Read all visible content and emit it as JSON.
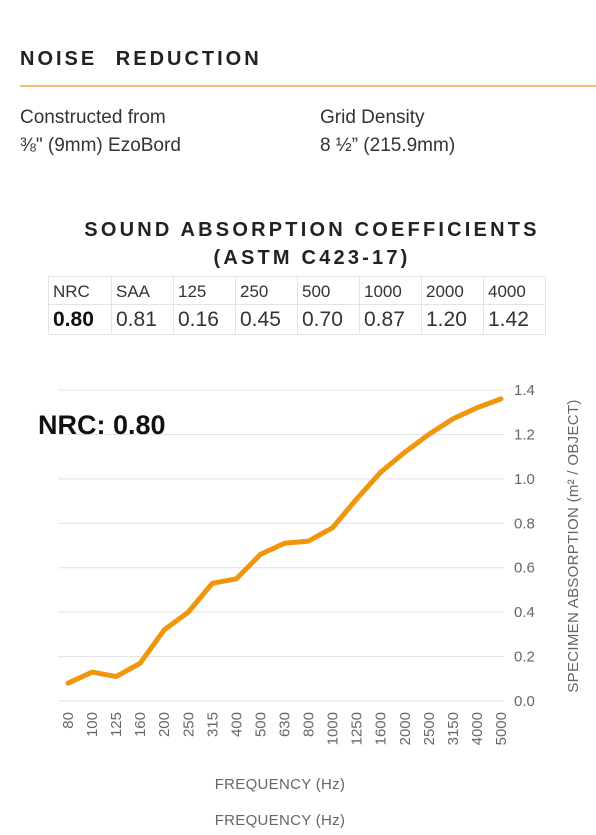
{
  "header": {
    "title": "NOISE REDUCTION",
    "accent_color": "#f5b971"
  },
  "specs": {
    "construction_label": "Constructed from",
    "construction_value": "⅜\" (9mm) EzoBord",
    "grid_label": "Grid Density",
    "grid_value": "8 ½” (215.9mm)"
  },
  "table": {
    "title_line1": "SOUND ABSORPTION COEFFICIENTS",
    "title_line2": "(ASTM C423-17)",
    "headers": [
      "NRC",
      "SAA",
      "125",
      "250",
      "500",
      "1000",
      "2000",
      "4000"
    ],
    "values": [
      "0.80",
      "0.81",
      "0.16",
      "0.45",
      "0.70",
      "0.87",
      "1.20",
      "1.42"
    ]
  },
  "nrc_callout": "NRC: 0.80",
  "x_axis_titles": [
    "FREQUENCY (Hz)",
    "FREQUENCY (Hz)"
  ],
  "chart_data": {
    "type": "line",
    "xlabel": "FREQUENCY (Hz)",
    "ylabel": "SPECIMEN ABSORPTION (m² / OBJECT)",
    "x": [
      "80",
      "100",
      "125",
      "160",
      "200",
      "250",
      "315",
      "400",
      "500",
      "630",
      "800",
      "1000",
      "1250",
      "1600",
      "2000",
      "2500",
      "3150",
      "4000",
      "5000"
    ],
    "series": [
      {
        "values": [
          0.08,
          0.13,
          0.11,
          0.17,
          0.32,
          0.4,
          0.53,
          0.55,
          0.66,
          0.71,
          0.72,
          0.78,
          0.91,
          1.03,
          1.12,
          1.2,
          1.27,
          1.32,
          1.36
        ]
      }
    ],
    "ylim": [
      0,
      1.4
    ],
    "yticks": [
      "0.0",
      "0.2",
      "0.4",
      "0.6",
      "0.8",
      "1.0",
      "1.2",
      "1.4"
    ],
    "grid": true,
    "line_color": "#f0960d",
    "grid_color": "#e3e3e3"
  }
}
